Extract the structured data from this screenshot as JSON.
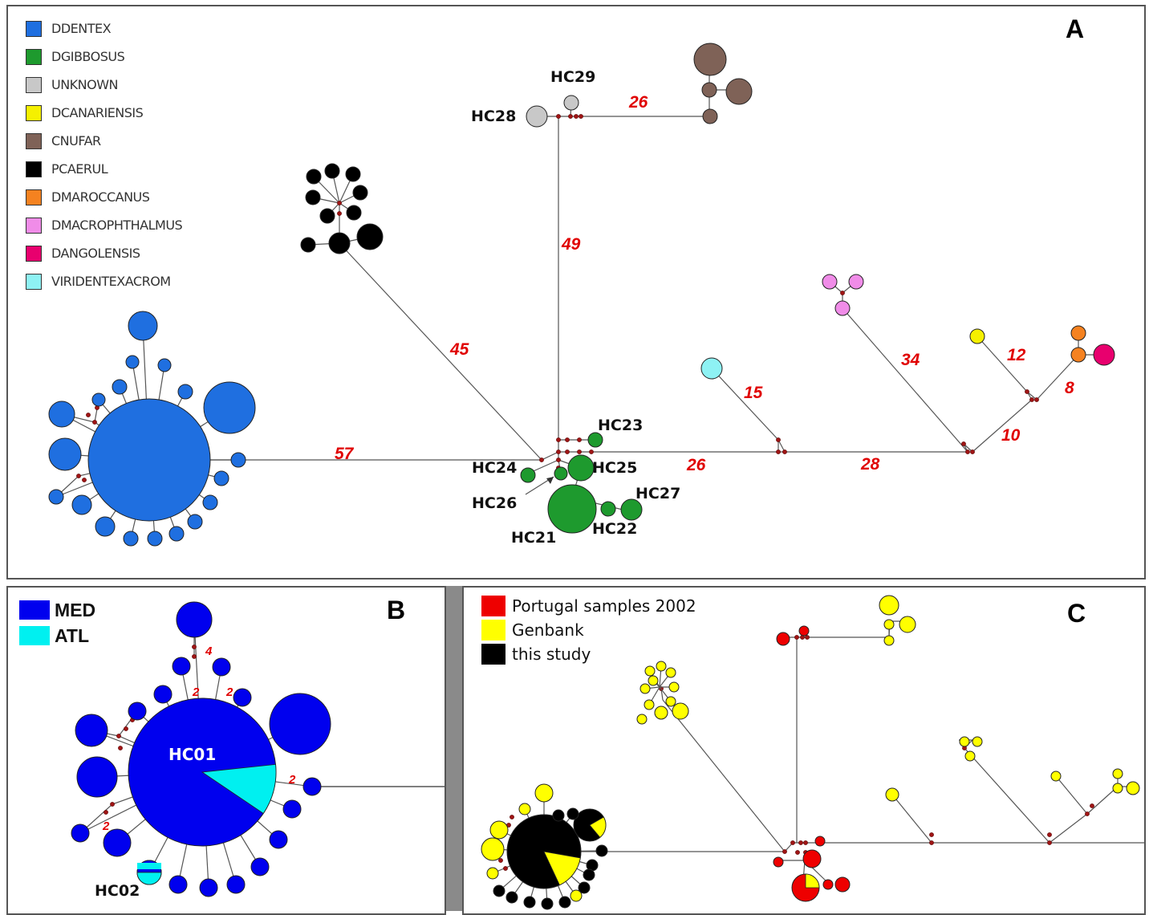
{
  "panels": {
    "A": {
      "label": "A",
      "legend": [
        {
          "name": "DDENTEX",
          "color": "#1f6fe0"
        },
        {
          "name": "DGIBBOSUS",
          "color": "#1e9a2e"
        },
        {
          "name": "UNKNOWN",
          "color": "#c8c8c8"
        },
        {
          "name": "DCANARIENSIS",
          "color": "#f5f000"
        },
        {
          "name": "CNUFAR",
          "color": "#7f6257"
        },
        {
          "name": "PCAERUL",
          "color": "#000000"
        },
        {
          "name": "DMAROCCANUS",
          "color": "#f58220"
        },
        {
          "name": "DMACROPHTHALMUS",
          "color": "#f08ce8"
        },
        {
          "name": "DANGOLENSIS",
          "color": "#e8006e"
        },
        {
          "name": "VIRIDENTEXACROM",
          "color": "#8ef2f4"
        }
      ],
      "haplotype_labels": [
        "HC29",
        "HC28",
        "HC23",
        "HC24",
        "HC25",
        "HC26",
        "HC27",
        "HC22",
        "HC21"
      ],
      "mutation_counts": [
        "26",
        "49",
        "45",
        "57",
        "15",
        "34",
        "12",
        "8",
        "10",
        "26",
        "28"
      ]
    },
    "B": {
      "label": "B",
      "legend": [
        {
          "name": "MED",
          "color": "#0000ee"
        },
        {
          "name": "ATL",
          "color": "#00f0f0"
        }
      ],
      "haplotype_labels": [
        "HC01",
        "HC02"
      ],
      "mutation_counts": [
        "4",
        "2",
        "2",
        "2",
        "2"
      ]
    },
    "C": {
      "label": "C",
      "legend": [
        {
          "name": "Portugal samples 2002",
          "color": "#ee0000"
        },
        {
          "name": "Genbank",
          "color": "#ffff00"
        },
        {
          "name": "this study",
          "color": "#000000"
        }
      ]
    }
  }
}
